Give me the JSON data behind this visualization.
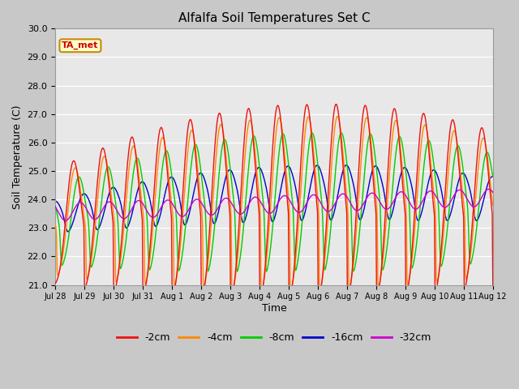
{
  "title": "Alfalfa Soil Temperatures Set C",
  "xlabel": "Time",
  "ylabel": "Soil Temperature (C)",
  "ylim": [
    21.0,
    30.0
  ],
  "yticks": [
    21.0,
    22.0,
    23.0,
    24.0,
    25.0,
    26.0,
    27.0,
    28.0,
    29.0,
    30.0
  ],
  "xtick_labels": [
    "Jul 28",
    "Jul 29",
    "Jul 30",
    "Jul 31",
    "Aug 1",
    "Aug 2",
    "Aug 3",
    "Aug 4",
    "Aug 5",
    "Aug 6",
    "Aug 7",
    "Aug 8",
    "Aug 9",
    "Aug 10",
    "Aug 11",
    "Aug 12"
  ],
  "plot_bg_color": "#e8e8e8",
  "fig_bg_color": "#c8c8c8",
  "colors": {
    "-2cm": "#ee1111",
    "-4cm": "#ff8800",
    "-8cm": "#00cc00",
    "-16cm": "#0000cc",
    "-32cm": "#cc00cc"
  },
  "annotation_text": "TA_met",
  "annotation_bg": "#ffffcc",
  "annotation_border": "#cc8800",
  "n_days": 15,
  "pts_per_day": 48
}
